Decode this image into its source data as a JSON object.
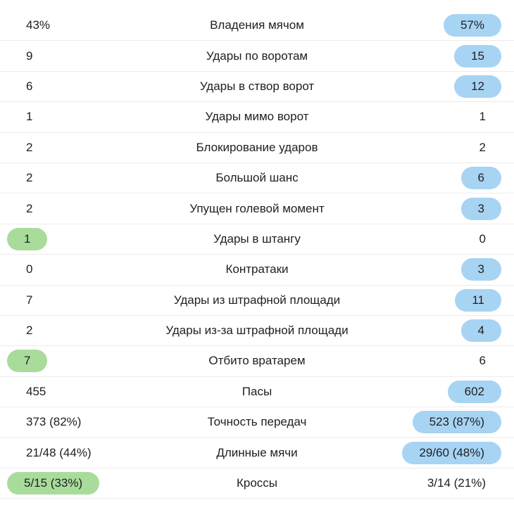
{
  "table": {
    "name": "match-statistics",
    "rows": [
      {
        "left": "43%",
        "label": "Владения мячом",
        "right": "57%",
        "left_highlight": "none",
        "right_highlight": "blue"
      },
      {
        "left": "9",
        "label": "Удары по воротам",
        "right": "15",
        "left_highlight": "none",
        "right_highlight": "blue"
      },
      {
        "left": "6",
        "label": "Удары в створ ворот",
        "right": "12",
        "left_highlight": "none",
        "right_highlight": "blue"
      },
      {
        "left": "1",
        "label": "Удары мимо ворот",
        "right": "1",
        "left_highlight": "none",
        "right_highlight": "none"
      },
      {
        "left": "2",
        "label": "Блокирование ударов",
        "right": "2",
        "left_highlight": "none",
        "right_highlight": "none"
      },
      {
        "left": "2",
        "label": "Большой шанс",
        "right": "6",
        "left_highlight": "none",
        "right_highlight": "blue"
      },
      {
        "left": "2",
        "label": "Упущен голевой момент",
        "right": "3",
        "left_highlight": "none",
        "right_highlight": "blue"
      },
      {
        "left": "1",
        "label": "Удары в штангу",
        "right": "0",
        "left_highlight": "green",
        "right_highlight": "none"
      },
      {
        "left": "0",
        "label": "Контратаки",
        "right": "3",
        "left_highlight": "none",
        "right_highlight": "blue"
      },
      {
        "left": "7",
        "label": "Удары из штрафной площади",
        "right": "11",
        "left_highlight": "none",
        "right_highlight": "blue"
      },
      {
        "left": "2",
        "label": "Удары из-за штрафной площади",
        "right": "4",
        "left_highlight": "none",
        "right_highlight": "blue"
      },
      {
        "left": "7",
        "label": "Отбито вратарем",
        "right": "6",
        "left_highlight": "green",
        "right_highlight": "none"
      },
      {
        "left": "455",
        "label": "Пасы",
        "right": "602",
        "left_highlight": "none",
        "right_highlight": "blue"
      },
      {
        "left": "373 (82%)",
        "label": "Точность передач",
        "right": "523 (87%)",
        "left_highlight": "none",
        "right_highlight": "blue"
      },
      {
        "left": "21/48 (44%)",
        "label": "Длинные мячи",
        "right": "29/60 (48%)",
        "left_highlight": "none",
        "right_highlight": "blue"
      },
      {
        "left": "5/15 (33%)",
        "label": "Кроссы",
        "right": "3/14 (21%)",
        "left_highlight": "green",
        "right_highlight": "none"
      }
    ]
  },
  "colors": {
    "highlight_blue": "#a8d4f4",
    "highlight_green": "#a9dc9b",
    "divider": "#ececec",
    "text": "#212121",
    "background": "#ffffff"
  }
}
